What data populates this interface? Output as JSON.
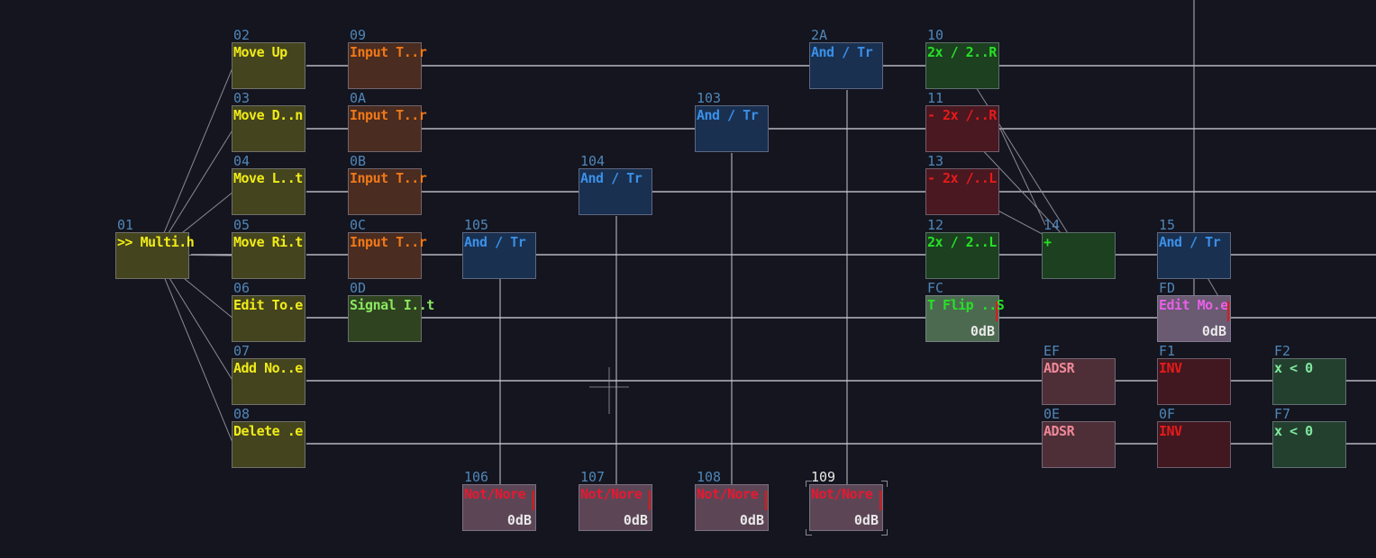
{
  "nodes": [
    {
      "id": "01",
      "label": ">> Multi.h",
      "fill": "#44441f",
      "text": "#f0ec18"
    },
    {
      "id": "02",
      "label": "Move Up",
      "fill": "#44441f",
      "text": "#f0ec18"
    },
    {
      "id": "03",
      "label": "Move D..n",
      "fill": "#44441f",
      "text": "#f0ec18"
    },
    {
      "id": "04",
      "label": "Move L..t",
      "fill": "#44441f",
      "text": "#f0ec18"
    },
    {
      "id": "05",
      "label": "Move Ri.t",
      "fill": "#44441f",
      "text": "#f0ec18"
    },
    {
      "id": "06",
      "label": "Edit To.e",
      "fill": "#44441f",
      "text": "#f0ec18"
    },
    {
      "id": "07",
      "label": "Add No..e",
      "fill": "#44441f",
      "text": "#f0ec18"
    },
    {
      "id": "08",
      "label": "Delete .e",
      "fill": "#44441f",
      "text": "#f0ec18"
    },
    {
      "id": "09",
      "label": "Input T..r",
      "fill": "#4a2c20",
      "text": "#f07818"
    },
    {
      "id": "0A",
      "label": "Input T..r",
      "fill": "#4a2c20",
      "text": "#f07818"
    },
    {
      "id": "0B",
      "label": "Input T..r",
      "fill": "#4a2c20",
      "text": "#f07818"
    },
    {
      "id": "0C",
      "label": "Input T..r",
      "fill": "#4a2c20",
      "text": "#f07818"
    },
    {
      "id": "0D",
      "label": "Signal I..t",
      "fill": "#2f4320",
      "text": "#8ae860"
    },
    {
      "id": "105",
      "label": "And / Tr",
      "fill": "#1a3050",
      "text": "#3a90e8"
    },
    {
      "id": "104",
      "label": "And / Tr",
      "fill": "#1a3050",
      "text": "#3a90e8"
    },
    {
      "id": "103",
      "label": "And / Tr",
      "fill": "#1a3050",
      "text": "#3a90e8"
    },
    {
      "id": "2A",
      "label": "And / Tr",
      "fill": "#1a3050",
      "text": "#3a90e8"
    },
    {
      "id": "106",
      "label": "Not/Nore",
      "fill": "#5c4656",
      "text": "#e81830",
      "db": "0dB"
    },
    {
      "id": "107",
      "label": "Not/Nore",
      "fill": "#5c4656",
      "text": "#e81830",
      "db": "0dB"
    },
    {
      "id": "108",
      "label": "Not/Nore",
      "fill": "#5c4656",
      "text": "#e81830",
      "db": "0dB"
    },
    {
      "id": "109",
      "label": "Not/Nore",
      "fill": "#5c4656",
      "text": "#e81830",
      "db": "0dB"
    },
    {
      "id": "10",
      "label": "2x / 2..R",
      "fill": "#1c4020",
      "text": "#28e028"
    },
    {
      "id": "11",
      "label": "- 2x /..R",
      "fill": "#4a1820",
      "text": "#e81a1a"
    },
    {
      "id": "13",
      "label": "- 2x /..L",
      "fill": "#4a1820",
      "text": "#e81a1a"
    },
    {
      "id": "12",
      "label": "2x / 2..L",
      "fill": "#1c4020",
      "text": "#28e028"
    },
    {
      "id": "FC",
      "label": "T Flip ..S",
      "fill": "#4c6a50",
      "text": "#28e028",
      "db": "0dB"
    },
    {
      "id": "14",
      "label": "+",
      "fill": "#1c4020",
      "text": "#28e028"
    },
    {
      "id": "15",
      "label": "And / Tr",
      "fill": "#1a3050",
      "text": "#3a90e8"
    },
    {
      "id": "FD",
      "label": "Edit Mo.e",
      "fill": "#6a5a72",
      "text": "#e860e8",
      "db": "0dB"
    },
    {
      "id": "EF",
      "label": "ADSR",
      "fill": "#4e2f38",
      "text": "#f08898"
    },
    {
      "id": "0E",
      "label": "ADSR",
      "fill": "#4e2f38",
      "text": "#f08898"
    },
    {
      "id": "F1",
      "label": "INV",
      "fill": "#421820",
      "text": "#e81a1a"
    },
    {
      "id": "0F",
      "label": "INV",
      "fill": "#421820",
      "text": "#e81a1a"
    },
    {
      "id": "F2",
      "label": "x < 0",
      "fill": "#23402e",
      "text": "#80e8a0"
    },
    {
      "id": "F7",
      "label": "x < 0",
      "fill": "#23402e",
      "text": "#80e8a0"
    }
  ]
}
